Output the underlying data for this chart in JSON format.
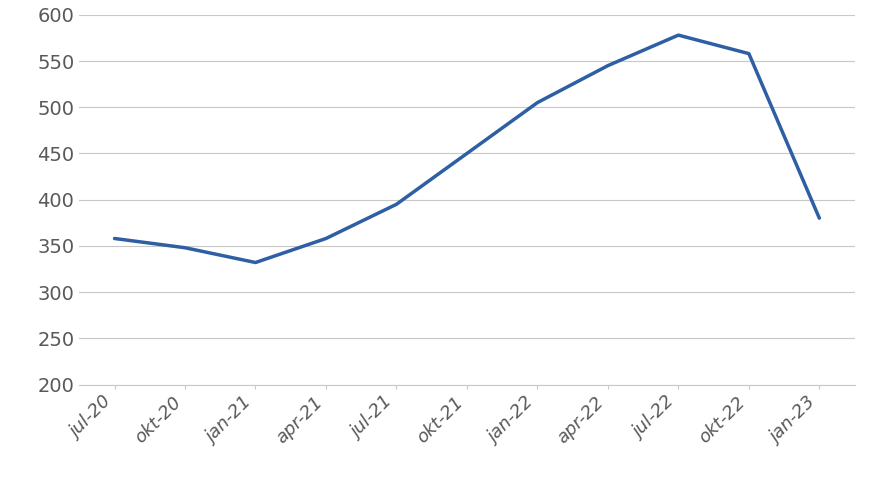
{
  "x_labels": [
    "jul-20",
    "okt-20",
    "jan-21",
    "apr-21",
    "jul-21",
    "okt-21",
    "jan-22",
    "apr-22",
    "jul-22",
    "okt-22",
    "jan-23"
  ],
  "y_values": [
    358,
    348,
    332,
    358,
    395,
    450,
    505,
    545,
    578,
    558,
    380
  ],
  "ylim": [
    200,
    600
  ],
  "yticks": [
    200,
    250,
    300,
    350,
    400,
    450,
    500,
    550,
    600
  ],
  "line_color": "#2E5FA3",
  "line_width": 2.5,
  "background_color": "#ffffff",
  "grid_color": "#c8c8c8",
  "tick_label_fontsize": 13,
  "ytick_label_fontsize": 14,
  "tick_label_color": "#595959"
}
